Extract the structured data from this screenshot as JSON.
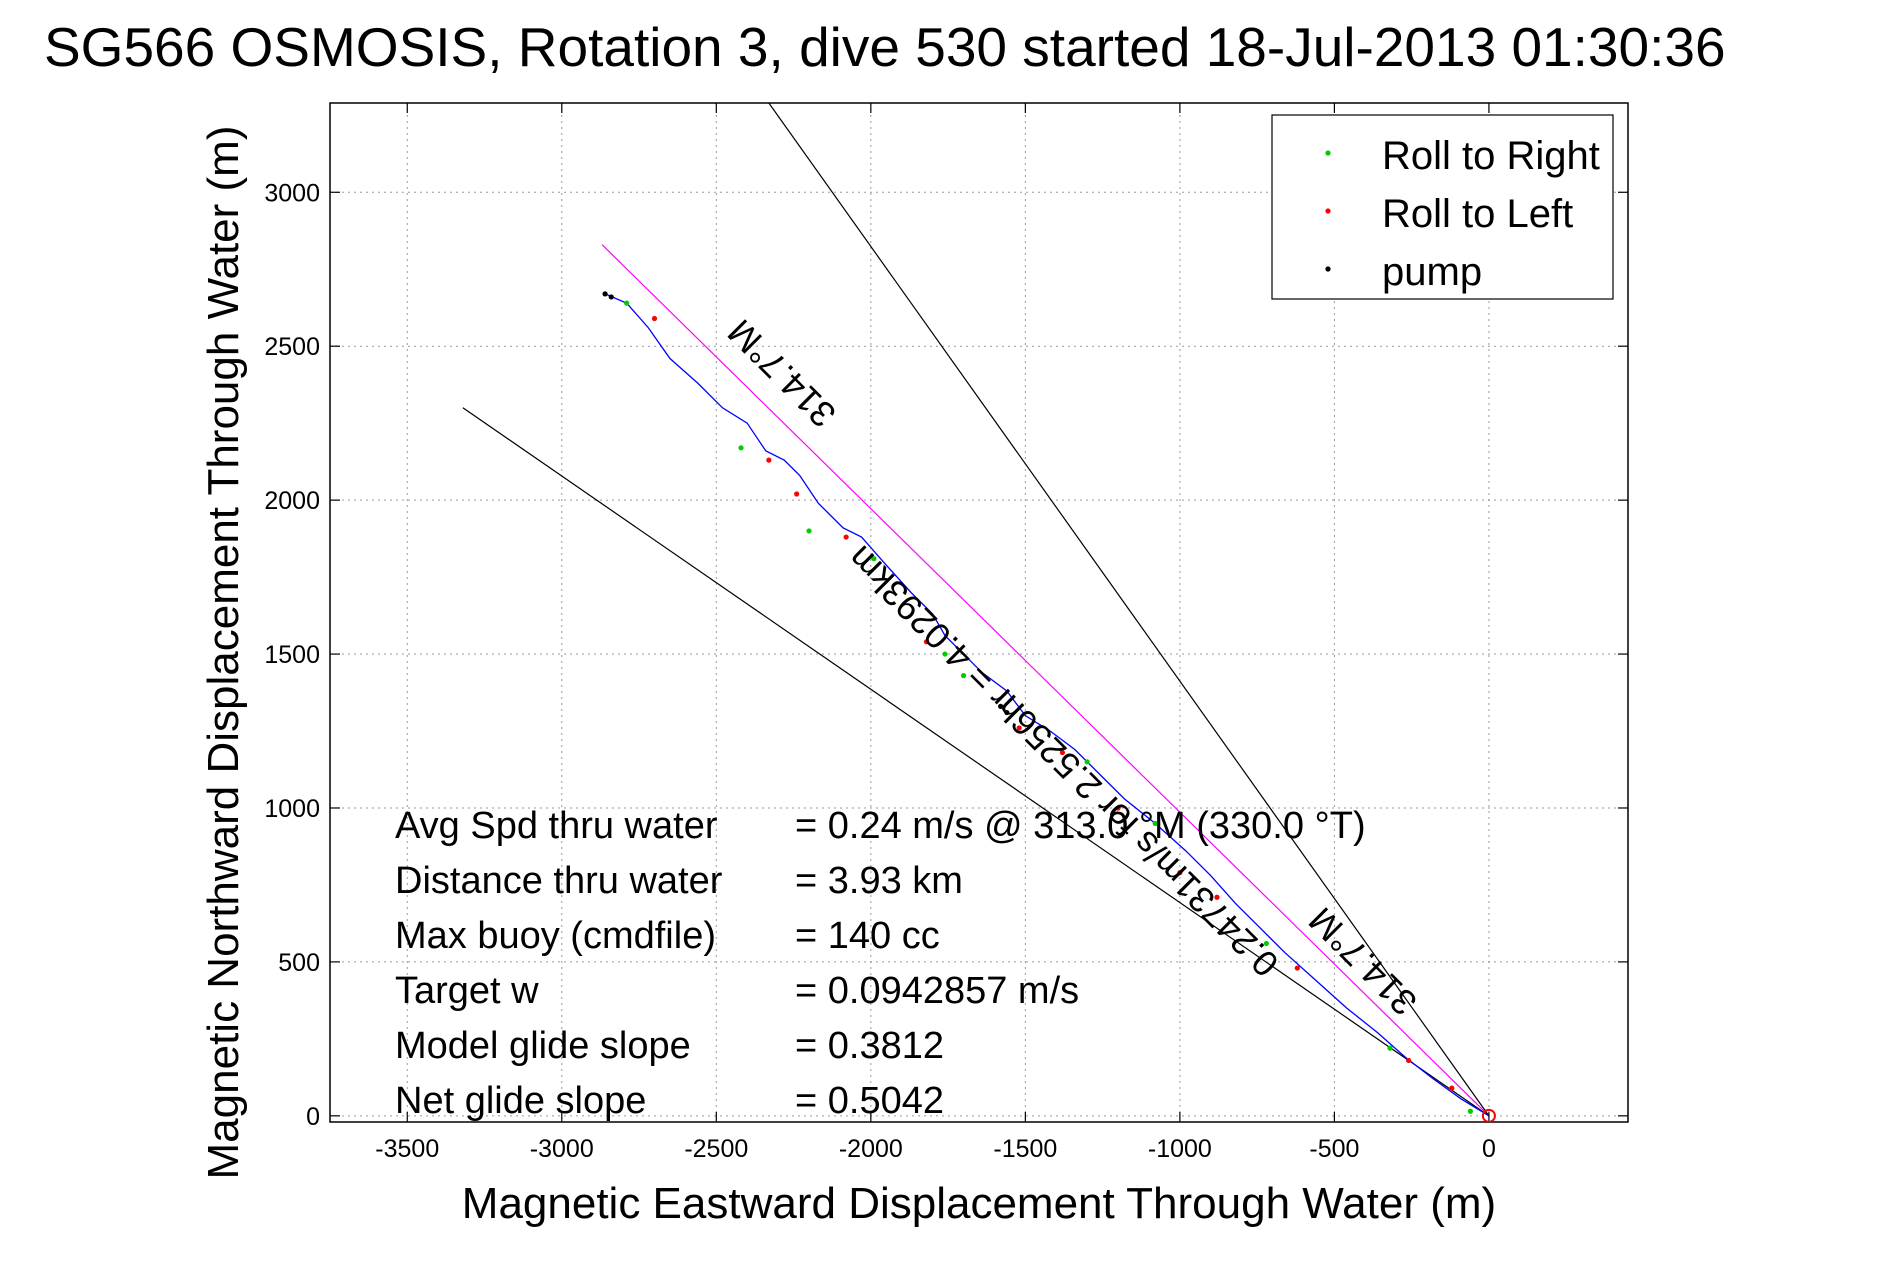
{
  "chart_data": {
    "type": "line",
    "title": "SG566 OSMOSIS, Rotation 3, dive 530 started 18-Jul-2013 01:30:36",
    "xlabel": "Magnetic Eastward Displacement Through Water (m)",
    "ylabel": "Magnetic Northward Displacement Through Water (m)",
    "xlim": [
      -3750,
      450
    ],
    "ylim": [
      -20,
      3290
    ],
    "xticks": [
      -3500,
      -3000,
      -2500,
      -2000,
      -1500,
      -1000,
      -500,
      0
    ],
    "yticks": [
      0,
      500,
      1000,
      1500,
      2000,
      2500,
      3000
    ],
    "grid": true,
    "legend": {
      "placement": "top-right",
      "entries": [
        {
          "label": "Roll to Right",
          "color": "#00cc00"
        },
        {
          "label": "Roll to Left",
          "color": "#ff0000"
        },
        {
          "label": "pump",
          "color": "#000000"
        }
      ]
    },
    "track": {
      "color": "#0000ff",
      "x": [
        0,
        -90,
        -180,
        -270,
        -360,
        -460,
        -560,
        -660,
        -740,
        -820,
        -900,
        -980,
        -1080,
        -1180,
        -1260,
        -1340,
        -1420,
        -1500,
        -1560,
        -1640,
        -1700,
        -1760,
        -1800,
        -1870,
        -1960,
        -2030,
        -2090,
        -2170,
        -2230,
        -2280,
        -2340,
        -2400,
        -2480,
        -2560,
        -2650,
        -2720,
        -2790,
        -2860
      ],
      "y": [
        0,
        55,
        120,
        190,
        270,
        350,
        440,
        530,
        610,
        690,
        780,
        860,
        950,
        1030,
        1110,
        1190,
        1250,
        1300,
        1380,
        1440,
        1500,
        1560,
        1630,
        1700,
        1800,
        1880,
        1910,
        1990,
        2080,
        2130,
        2160,
        2250,
        2300,
        2380,
        2460,
        2560,
        2640,
        2670
      ]
    },
    "roll_right_points": {
      "x": [
        -60,
        -320,
        -720,
        -1080,
        -1300,
        -1700,
        -1760,
        -1990,
        -2200,
        -2420,
        -2790
      ],
      "y": [
        15,
        220,
        560,
        950,
        1150,
        1430,
        1500,
        1810,
        1900,
        2170,
        2640
      ]
    },
    "roll_left_points": {
      "x": [
        -120,
        -260,
        -620,
        -880,
        -1000,
        -1200,
        -1380,
        -1520,
        -1820,
        -2080,
        -2240,
        -2330,
        -2700
      ],
      "y": [
        90,
        180,
        480,
        710,
        790,
        1000,
        1180,
        1260,
        1540,
        1880,
        2020,
        2130,
        2590
      ]
    },
    "pump_points": {
      "x": [
        -1580,
        -1560,
        -2840,
        -2860
      ],
      "y": [
        1330,
        1310,
        2660,
        2670
      ]
    },
    "reference_lines": [
      {
        "name": "heading",
        "color": "#ff00ff",
        "x": [
          0,
          -2870
        ],
        "y": [
          0,
          2830
        ]
      },
      {
        "name": "bound-upper",
        "color": "#000000",
        "x": [
          0,
          -2330
        ],
        "y": [
          0,
          3290
        ]
      },
      {
        "name": "bound-lower",
        "color": "#000000",
        "x": [
          0,
          -3320
        ],
        "y": [
          0,
          2300
        ]
      }
    ],
    "rotated_labels": [
      {
        "text": "314.7°M",
        "x": -2260,
        "y": 2440,
        "angle": 225
      },
      {
        "text": "0.24731m/s for 2.5256hr = 4.0293km",
        "x": -1350,
        "y": 1180,
        "angle": 225
      },
      {
        "text": "314.7°M",
        "x": -380,
        "y": 530,
        "angle": 225
      }
    ],
    "annotations": [
      {
        "label": "Avg Spd thru water",
        "value": "=  0.24 m/s @ 313.0 °M (330.0 °T)"
      },
      {
        "label": "Distance thru water",
        "value": "=  3.93 km"
      },
      {
        "label": "Max buoy (cmdfile)",
        "value": "= 140 cc"
      },
      {
        "label": "Target w",
        "value": "= 0.0942857 m/s"
      },
      {
        "label": "Model glide slope",
        "value": "= 0.3812"
      },
      {
        "label": "Net glide slope",
        "value": "= 0.5042"
      }
    ]
  }
}
